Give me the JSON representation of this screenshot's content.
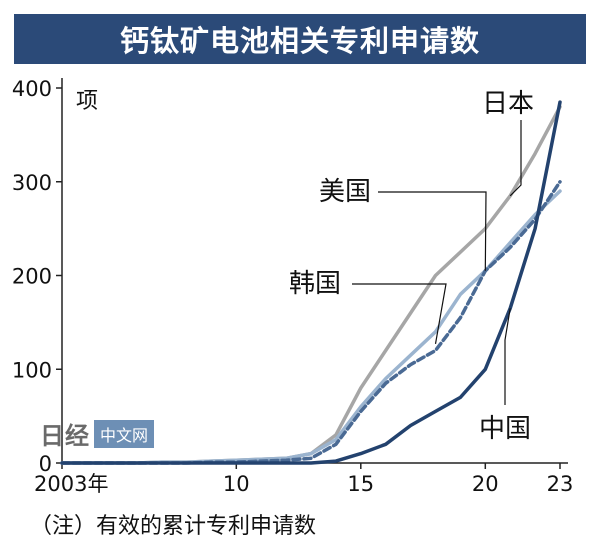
{
  "header": {
    "title": "钙钛矿电池相关专利申请数"
  },
  "watermark": {
    "logo": "日经",
    "tag": "中文网"
  },
  "footnote": "（注）有效的累计专利申请数",
  "colors": {
    "japan": "#a6a6a6",
    "usa": "#9bb4cf",
    "korea": "#4a6a94",
    "china": "#23426e",
    "title_bg": "#2b4a78",
    "axis": "#222222"
  },
  "chart_data": {
    "type": "line",
    "title": "钙钛矿电池相关专利申请数",
    "ylabel": "项",
    "xlabel": "",
    "xlim": [
      2003,
      2023
    ],
    "ylim": [
      0,
      400
    ],
    "x_ticks": [
      2003,
      2010,
      2015,
      2020,
      2023
    ],
    "x_tick_labels": [
      "2003年",
      "10",
      "15",
      "20",
      "23"
    ],
    "y_ticks": [
      0,
      100,
      200,
      300,
      400
    ],
    "y_tick_labels": [
      "0",
      "100",
      "200",
      "300",
      "400"
    ],
    "grid": false,
    "legend": "inline labels",
    "x": [
      2003,
      2004,
      2005,
      2006,
      2007,
      2008,
      2009,
      2010,
      2011,
      2012,
      2013,
      2014,
      2015,
      2016,
      2017,
      2018,
      2019,
      2020,
      2021,
      2022,
      2023
    ],
    "series": [
      {
        "name": "日本",
        "key": "japan",
        "style": "solid",
        "values": [
          0,
          0,
          0,
          0,
          1,
          1,
          2,
          3,
          4,
          5,
          10,
          30,
          80,
          120,
          160,
          200,
          225,
          250,
          285,
          330,
          380
        ]
      },
      {
        "name": "美国",
        "key": "usa",
        "style": "solid",
        "values": [
          0,
          0,
          0,
          0,
          1,
          1,
          2,
          3,
          4,
          5,
          10,
          25,
          60,
          90,
          115,
          140,
          180,
          205,
          235,
          265,
          290
        ]
      },
      {
        "name": "韩国",
        "key": "korea",
        "style": "dashed",
        "values": [
          0,
          0,
          0,
          0,
          0,
          0,
          1,
          1,
          2,
          3,
          5,
          20,
          55,
          85,
          105,
          120,
          155,
          205,
          230,
          260,
          300
        ]
      },
      {
        "name": "中国",
        "key": "china",
        "style": "solid",
        "values": [
          0,
          0,
          0,
          0,
          0,
          0,
          0,
          0,
          0,
          0,
          0,
          2,
          10,
          20,
          40,
          55,
          70,
          100,
          165,
          250,
          385
        ]
      }
    ]
  }
}
